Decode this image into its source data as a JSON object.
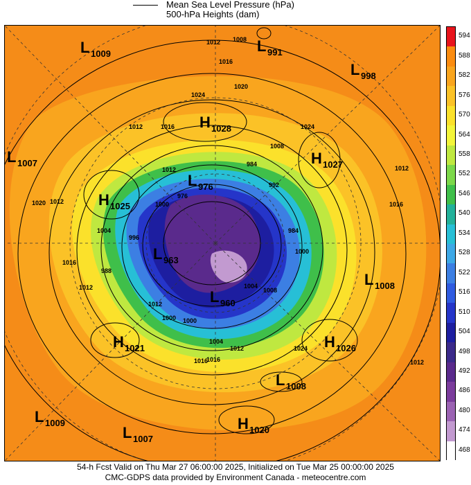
{
  "legend": {
    "line1": "Mean Sea Level Pressure (hPa)",
    "line2": "500-hPa Heights (dam)"
  },
  "colorbar": {
    "labels": [
      "594",
      "588",
      "582",
      "576",
      "570",
      "564",
      "558",
      "552",
      "546",
      "540",
      "534",
      "528",
      "522",
      "516",
      "510",
      "504",
      "498",
      "492",
      "486",
      "480",
      "474",
      "468"
    ],
    "colors": [
      "#e8141c",
      "#fb8c10",
      "#f9a51e",
      "#fbc227",
      "#fbe12b",
      "#f3f53a",
      "#bfe840",
      "#7cd84a",
      "#3fbf4a",
      "#22b19a",
      "#27bfd6",
      "#3da8e6",
      "#3c7fe3",
      "#2f5be0",
      "#2535c9",
      "#1d1ea0",
      "#3b2a8a",
      "#5a2a8c",
      "#7b3c9c",
      "#9b63b3",
      "#c29ad0",
      "#ffffff"
    ]
  },
  "pressure_centers": [
    {
      "type": "L",
      "value": "1009"
    },
    {
      "type": "L",
      "value": "991"
    },
    {
      "type": "L",
      "value": "998"
    },
    {
      "type": "L",
      "value": "1007"
    },
    {
      "type": "H",
      "value": "1028"
    },
    {
      "type": "H",
      "value": "1027"
    },
    {
      "type": "H",
      "value": "1025"
    },
    {
      "type": "L",
      "value": "976"
    },
    {
      "type": "L",
      "value": "963"
    },
    {
      "type": "L",
      "value": "960"
    },
    {
      "type": "L",
      "value": "1008"
    },
    {
      "type": "H",
      "value": "1021"
    },
    {
      "type": "H",
      "value": "1026"
    },
    {
      "type": "L",
      "value": "1008"
    },
    {
      "type": "L",
      "value": "1009"
    },
    {
      "type": "H",
      "value": "1020"
    },
    {
      "type": "L",
      "value": "1007"
    }
  ],
  "isobar_labels": [
    "1012",
    "1008",
    "1016",
    "1020",
    "1024",
    "1012",
    "1016",
    "1020",
    "1012",
    "1016",
    "1024",
    "1008",
    "1012",
    "1016",
    "1012",
    "1000",
    "992",
    "984",
    "996",
    "1004",
    "988",
    "976",
    "1000",
    "984",
    "1008",
    "1004",
    "1016",
    "1012",
    "1024",
    "1000",
    "1004",
    "1012",
    "1000",
    "1016",
    "1012",
    "1012"
  ],
  "footer": {
    "line1": "54-h Fcst Valid on Thu Mar 27 06:00:00 2025, Initialized on Tue Mar 25 00:00:00 2025",
    "line2": "CMC-GDPS data provided by Environment Canada - meteocentre.com"
  }
}
